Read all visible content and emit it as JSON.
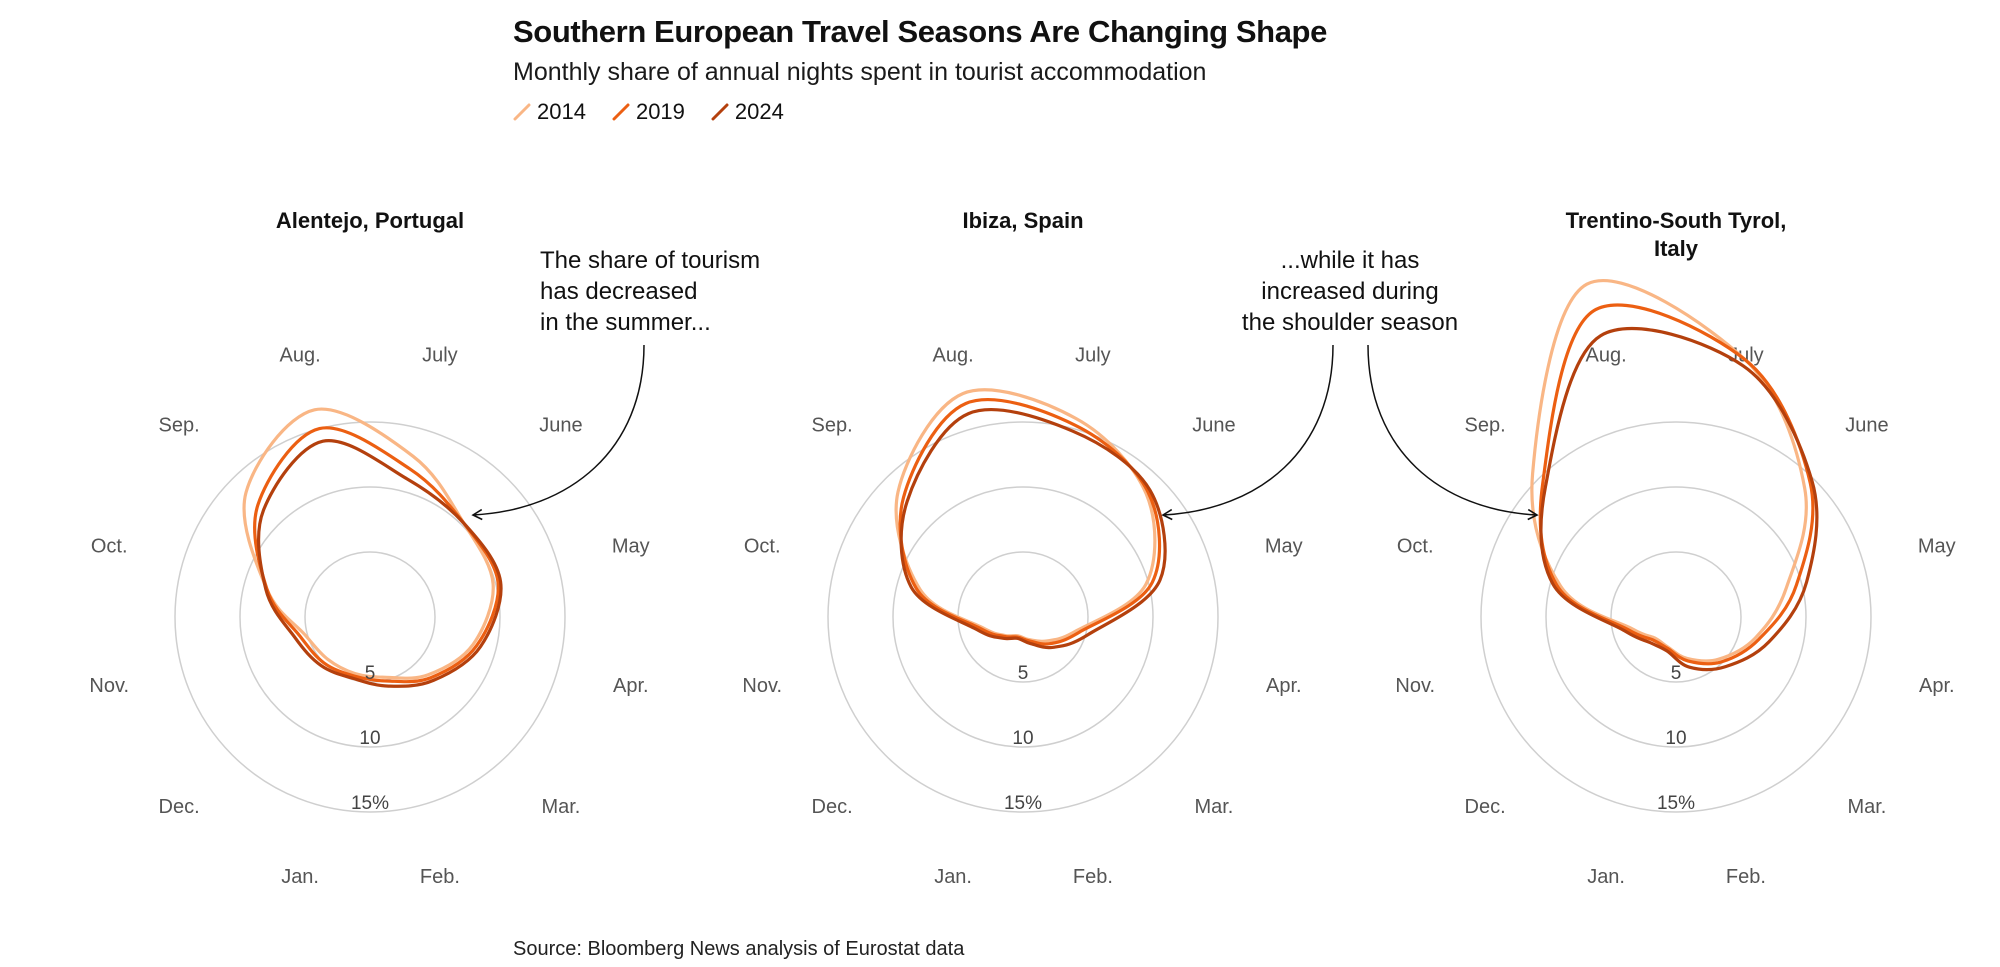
{
  "chart_data": [
    {
      "type": "radar",
      "title": "Alentejo, Portugal",
      "categories": [
        "Jan.",
        "Feb.",
        "Mar.",
        "Apr.",
        "May",
        "June",
        "July",
        "Aug.",
        "Sep.",
        "Oct.",
        "Nov.",
        "Dec."
      ],
      "ring_ticks": [
        5,
        10,
        15
      ],
      "ring_tick_labels": [
        "5",
        "10",
        "15%"
      ],
      "series": [
        {
          "name": "2014",
          "values": [
            4.5,
            4.8,
            6.3,
            8.2,
            9.8,
            10.2,
            12.8,
            16.5,
            13.5,
            8.2,
            5.2,
            4.6
          ]
        },
        {
          "name": "2019",
          "values": [
            4.7,
            5.1,
            6.6,
            8.5,
            10.2,
            10.2,
            11.8,
            15.0,
            12.2,
            8.2,
            5.6,
            5.0
          ]
        },
        {
          "name": "2024",
          "values": [
            4.9,
            5.5,
            6.9,
            8.8,
            10.4,
            10.2,
            11.0,
            14.0,
            11.6,
            8.3,
            6.0,
            5.3
          ]
        }
      ]
    },
    {
      "type": "radar",
      "title": "Ibiza, Spain",
      "categories": [
        "Jan.",
        "Feb.",
        "Mar.",
        "Apr.",
        "May",
        "June",
        "July",
        "Aug.",
        "Sep.",
        "Oct.",
        "Nov.",
        "Dec."
      ],
      "ring_ticks": [
        5,
        10,
        15
      ],
      "ring_tick_labels": [
        "5",
        "10",
        "15%"
      ],
      "series": [
        {
          "name": "2014",
          "values": [
            1.5,
            1.8,
            2.6,
            4.2,
            9.8,
            13.4,
            15.8,
            17.8,
            13.6,
            8.2,
            3.2,
            2.0
          ]
        },
        {
          "name": "2019",
          "values": [
            1.6,
            1.9,
            2.9,
            4.5,
            10.3,
            13.6,
            15.3,
            17.0,
            13.0,
            8.5,
            3.4,
            2.1
          ]
        },
        {
          "name": "2024",
          "values": [
            1.7,
            2.1,
            3.3,
            5.2,
            10.9,
            13.8,
            14.8,
            16.2,
            12.6,
            8.9,
            3.7,
            2.3
          ]
        }
      ]
    },
    {
      "type": "radar",
      "title": "Trentino-South Tyrol, Italy",
      "categories": [
        "Jan.",
        "Feb.",
        "Mar.",
        "Apr.",
        "May",
        "June",
        "July",
        "Aug.",
        "Sep.",
        "Oct.",
        "Nov.",
        "Dec."
      ],
      "ring_ticks": [
        5,
        10,
        15
      ],
      "ring_tick_labels": [
        "5",
        "10",
        "15%"
      ],
      "series": [
        {
          "name": "2014",
          "values": [
            2.4,
            3.3,
            4.6,
            6.3,
            8.8,
            14.0,
            20.5,
            26.5,
            15.6,
            9.2,
            3.5,
            2.3
          ]
        },
        {
          "name": "2019",
          "values": [
            2.5,
            3.5,
            4.9,
            6.6,
            9.6,
            14.6,
            20.5,
            24.4,
            14.5,
            9.5,
            3.8,
            2.5
          ]
        },
        {
          "name": "2024",
          "values": [
            2.7,
            4.0,
            5.4,
            7.4,
            10.4,
            14.8,
            20.0,
            22.4,
            14.2,
            9.8,
            4.1,
            2.8
          ]
        }
      ]
    }
  ],
  "header": {
    "title": "Southern European Travel Seasons Are Changing Shape",
    "subtitle": "Monthly share of annual nights spent in tourist accommodation"
  },
  "legend": [
    {
      "label": "2014",
      "color": "#f9b685"
    },
    {
      "label": "2019",
      "color": "#ec5f12"
    },
    {
      "label": "2024",
      "color": "#b4400d"
    }
  ],
  "annotations": {
    "left": [
      "The share of tourism",
      "has decreased",
      "in the summer..."
    ],
    "right": [
      "...while it has",
      "increased during",
      "the shoulder season"
    ]
  },
  "source": "Source: Bloomberg News analysis of Eurostat data"
}
